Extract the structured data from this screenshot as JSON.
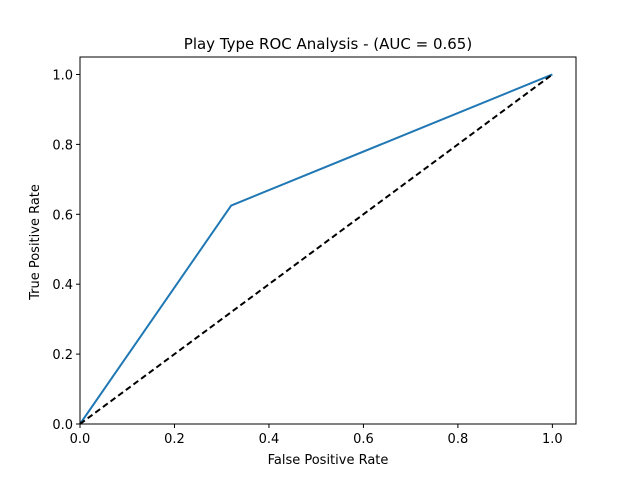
{
  "chart_data": {
    "type": "line",
    "title": "Play Type ROC Analysis - (AUC = 0.65)",
    "xlabel": "False Positive Rate",
    "ylabel": "True Positive Rate",
    "xlim": [
      0.0,
      1.05
    ],
    "ylim": [
      0.0,
      1.05
    ],
    "xticks": [
      0.0,
      0.2,
      0.4,
      0.6,
      0.8,
      1.0
    ],
    "xtick_labels": [
      "0.0",
      "0.2",
      "0.4",
      "0.6",
      "0.8",
      "1.0"
    ],
    "yticks": [
      0.0,
      0.2,
      0.4,
      0.6,
      0.8,
      1.0
    ],
    "ytick_labels": [
      "0.0",
      "0.2",
      "0.4",
      "0.6",
      "0.8",
      "1.0"
    ],
    "grid": false,
    "series": [
      {
        "style": "solid",
        "color": "#1f77b4",
        "x": [
          0.0,
          0.32,
          1.0
        ],
        "y": [
          0.0,
          0.625,
          1.0
        ]
      },
      {
        "style": "dashed",
        "color": "#000000",
        "x": [
          0.0,
          1.0
        ],
        "y": [
          0.0,
          1.0
        ]
      }
    ]
  }
}
